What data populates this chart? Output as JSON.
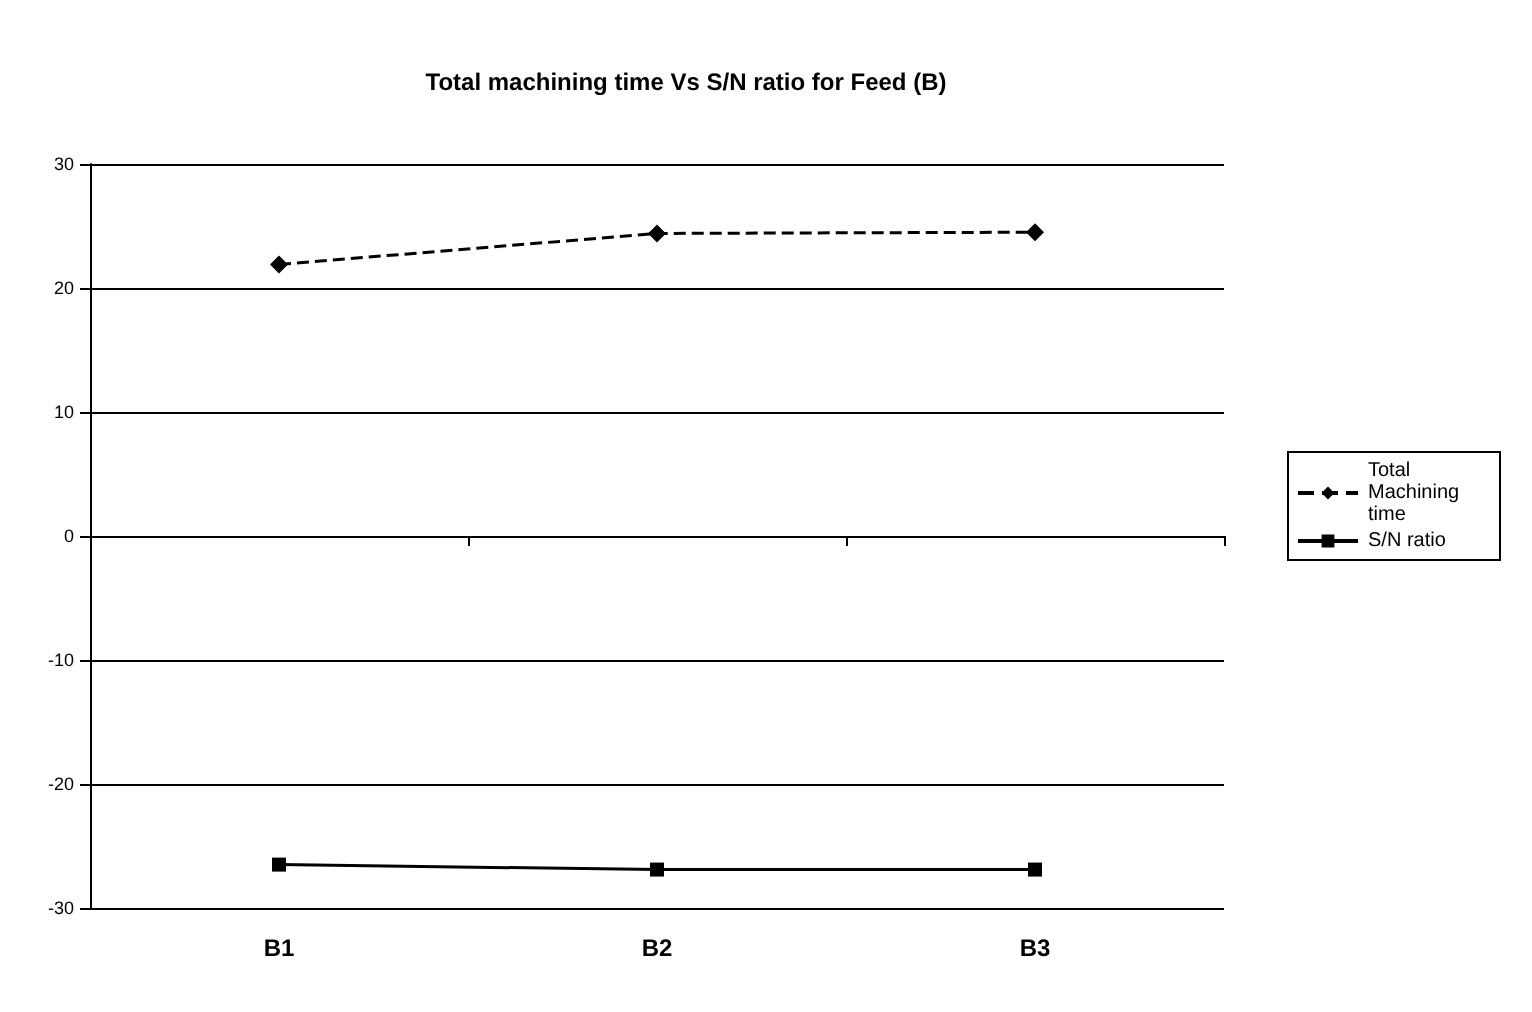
{
  "chart_data": {
    "type": "line",
    "title": "Total machining time Vs S/N ratio for Feed (B)",
    "categories": [
      "B1",
      "B2",
      "B3"
    ],
    "series": [
      {
        "name": "Total Machining time",
        "color": "#000000",
        "values": [
          21.9,
          24.4,
          24.5
        ],
        "marker": "diamond",
        "line_style": "dashed"
      },
      {
        "name": "S/N ratio",
        "color": "#000000",
        "values": [
          -26.5,
          -26.9,
          -26.9
        ],
        "marker": "square",
        "line_style": "solid"
      }
    ],
    "ylim": [
      -30,
      30
    ],
    "yticks": [
      -30,
      -20,
      -10,
      0,
      10,
      20,
      30
    ],
    "grid": "y",
    "legend": "right"
  }
}
